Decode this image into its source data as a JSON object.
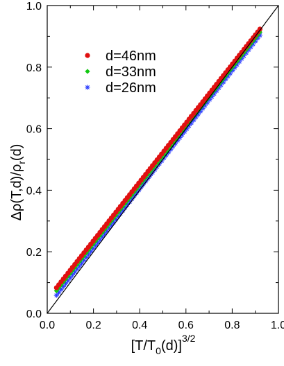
{
  "chart_data": {
    "type": "scatter",
    "xlabel": {
      "main": "[T/T",
      "sub": "0",
      "rest": "(d)]",
      "sup": "3/2"
    },
    "ylabel": {
      "pre": "Δρ(T,d)/ρ",
      "sub": "r",
      "post": "(d)"
    },
    "xlim": [
      0.0,
      1.0
    ],
    "ylim": [
      0.0,
      1.0
    ],
    "x_ticks": [
      "0.0",
      "0.2",
      "0.4",
      "0.6",
      "0.8",
      "1.0"
    ],
    "y_ticks": [
      "0.0",
      "0.2",
      "0.4",
      "0.6",
      "0.8",
      "1.0"
    ],
    "grid": false,
    "legend_position": "top-left",
    "reference_line": {
      "from": [
        0.0,
        0.0
      ],
      "to": [
        1.0,
        1.0
      ],
      "color": "#000000"
    },
    "series": [
      {
        "name": "d=46nm",
        "marker": "circle",
        "color": "#e01010",
        "x_range": [
          0.04,
          0.92
        ],
        "slope": 0.955,
        "intercept": 0.045
      },
      {
        "name": "d=33nm",
        "marker": "diamond",
        "color": "#10c810",
        "x_range": [
          0.04,
          0.92
        ],
        "slope": 0.955,
        "intercept": 0.035
      },
      {
        "name": "d=26nm",
        "marker": "star",
        "color": "#2a3cff",
        "x_range": [
          0.04,
          0.92
        ],
        "slope": 0.96,
        "intercept": 0.02
      }
    ]
  }
}
